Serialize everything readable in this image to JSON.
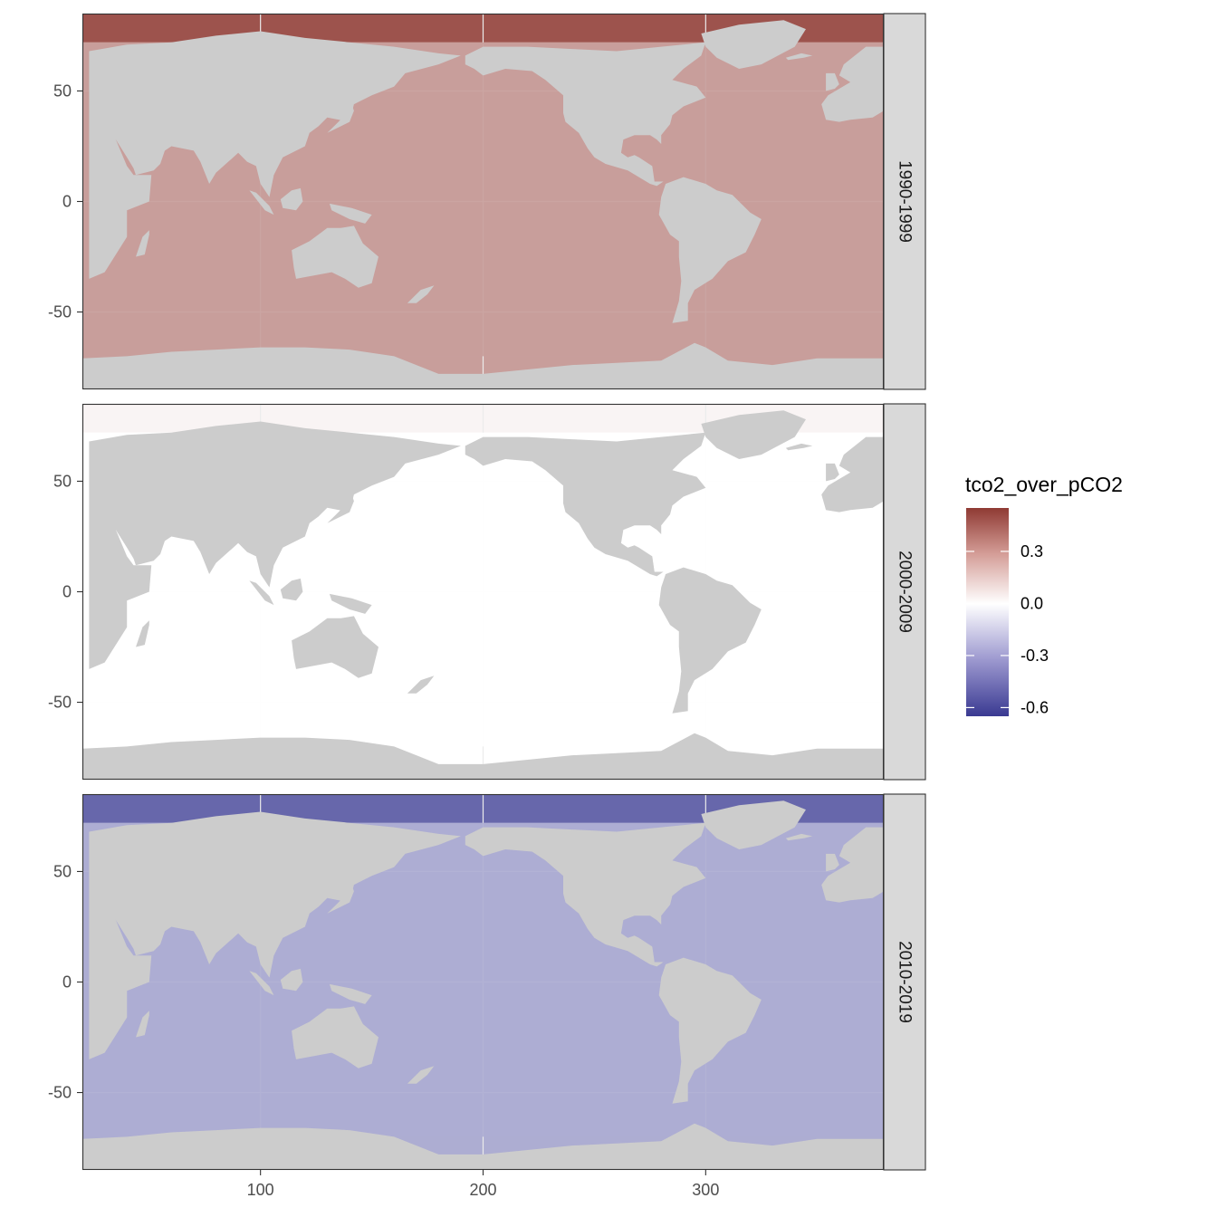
{
  "chart_data": {
    "type": "heatmap",
    "kind": "faceted global ocean map",
    "x_ticks": [
      100,
      200,
      300
    ],
    "y_ticks": [
      50,
      0,
      -50
    ],
    "xlim": [
      20,
      380
    ],
    "ylim": [
      -85,
      85
    ],
    "grid": true,
    "facet_strip_position": "right",
    "legend_placement": "right",
    "legend": {
      "title": "tco2_over_pCO2",
      "range": [
        -0.65,
        0.55
      ],
      "ticks": [
        0.3,
        0.0,
        -0.3,
        -0.6
      ],
      "tick_labels": [
        "0.3",
        "0.0",
        "-0.3",
        "-0.6"
      ],
      "colors": {
        "low": "#3a3a92",
        "mid": "#ffffff",
        "high": "#8f3a33"
      }
    },
    "land_color": "#cccccc",
    "panels": [
      {
        "label": "1990-1999",
        "typical_value": 0.27,
        "polar_value": 0.48
      },
      {
        "label": "2000-2009",
        "typical_value": 0.0,
        "polar_value": 0.03
      },
      {
        "label": "2010-2019",
        "typical_value": -0.27,
        "polar_value": -0.5
      }
    ]
  }
}
